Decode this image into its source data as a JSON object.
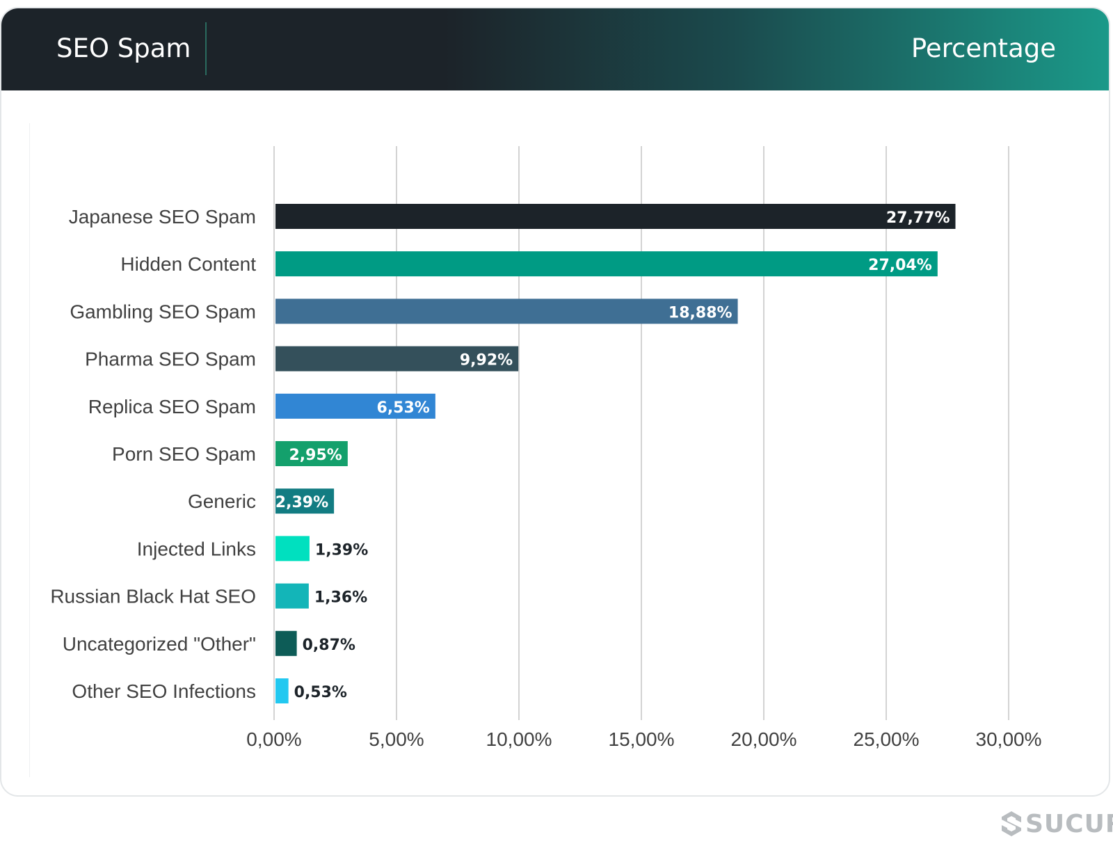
{
  "header": {
    "title": "SEO Spam",
    "right_label": "Percentage"
  },
  "brand": {
    "name": "SUCURI",
    "visible_text": "SUCURI",
    "icon": "sucuri-logo-icon"
  },
  "colors": {
    "header_dark": "#1c2329",
    "header_teal": "#1b9989",
    "gridline": "#d3d3d3",
    "label": "#404040"
  },
  "chart_data": {
    "type": "bar",
    "orientation": "horizontal",
    "title": "",
    "xlabel": "",
    "ylabel": "",
    "xlim": [
      0,
      30
    ],
    "grid": true,
    "legend": "none",
    "categories": [
      "Japanese SEO Spam",
      "Hidden Content",
      "Gambling SEO Spam",
      "Pharma SEO Spam",
      "Replica SEO Spam",
      "Porn SEO Spam",
      "Generic",
      "Injected Links",
      "Russian Black Hat SEO",
      "Uncategorized \"Other\"",
      "Other SEO Infections"
    ],
    "values": [
      27.77,
      27.04,
      18.88,
      9.92,
      6.53,
      2.95,
      2.39,
      1.39,
      1.36,
      0.87,
      0.53
    ],
    "data_labels": [
      "27,77%",
      "27,04%",
      "18,88%",
      "9,92%",
      "6,53%",
      "2,95%",
      "2,39%",
      "1,39%",
      "1,36%",
      "0,87%",
      "0,53%"
    ],
    "colors": [
      "#1c2329",
      "#009b84",
      "#3f6f94",
      "#34505b",
      "#3186d4",
      "#14a06c",
      "#127c82",
      "#00e0bf",
      "#13b5b8",
      "#0d5c57",
      "#22c8f0"
    ],
    "x_ticks": [
      0,
      5,
      10,
      15,
      20,
      25,
      30
    ],
    "x_tick_labels": [
      "0,00%",
      "5,00%",
      "10,00%",
      "15,00%",
      "20,00%",
      "25,00%",
      "30,00%"
    ]
  }
}
